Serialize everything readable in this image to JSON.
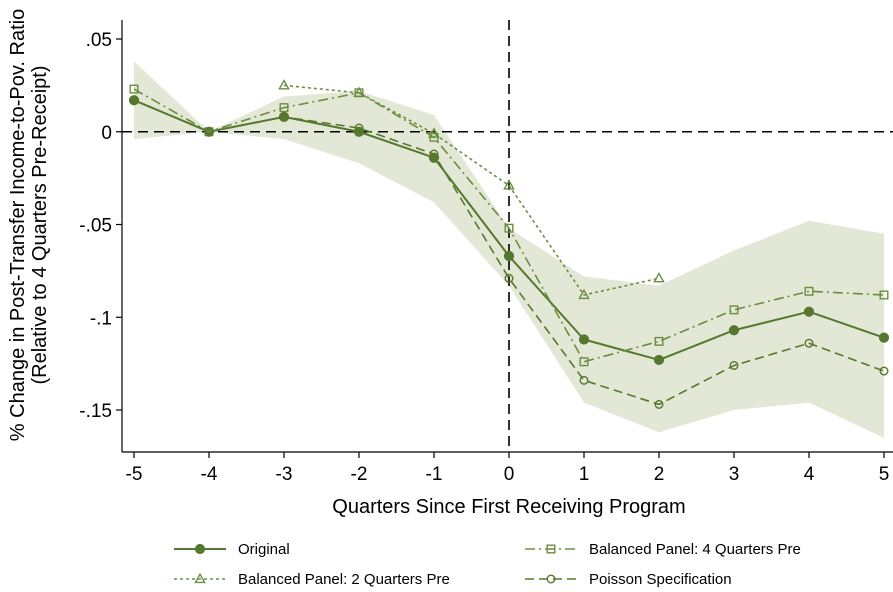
{
  "chart_data": {
    "type": "line",
    "xlabel": "Quarters Since First Receiving Program",
    "ylabel_line1": "% Change in Post-Transfer Income-to-Pov. Ratio",
    "ylabel_line2": "(Relative to 4 Quarters Pre-Receipt)",
    "xlim": [
      -5,
      5
    ],
    "ylim": [
      -0.162,
      0.05
    ],
    "x_ticks": [
      {
        "value": -5,
        "label": "-5"
      },
      {
        "value": -4,
        "label": "-4"
      },
      {
        "value": -3,
        "label": "-3"
      },
      {
        "value": -2,
        "label": "-2"
      },
      {
        "value": -1,
        "label": "-1"
      },
      {
        "value": 0,
        "label": "0"
      },
      {
        "value": 1,
        "label": "1"
      },
      {
        "value": 2,
        "label": "2"
      },
      {
        "value": 3,
        "label": "3"
      },
      {
        "value": 4,
        "label": "4"
      },
      {
        "value": 5,
        "label": "5"
      }
    ],
    "y_ticks": [
      {
        "value": 0.05,
        "label": ".05"
      },
      {
        "value": 0,
        "label": "0"
      },
      {
        "value": -0.05,
        "label": "-.05"
      },
      {
        "value": -0.1,
        "label": "-.1"
      },
      {
        "value": -0.15,
        "label": "-.15"
      }
    ],
    "reference_lines": {
      "x": 0,
      "y": 0
    },
    "grid": false,
    "legend_position": "bottom",
    "confidence_band": {
      "x": [
        -5,
        -4,
        -3,
        -2,
        -1,
        0,
        1,
        2,
        3,
        4,
        5
      ],
      "upper": [
        0.038,
        0.0,
        0.019,
        0.022,
        0.009,
        -0.052,
        -0.078,
        -0.083,
        -0.064,
        -0.048,
        -0.055
      ],
      "lower": [
        -0.004,
        0.0,
        -0.004,
        -0.017,
        -0.038,
        -0.083,
        -0.146,
        -0.162,
        -0.15,
        -0.146,
        -0.165
      ],
      "color": "#e2e8d5"
    },
    "series": [
      {
        "name": "Original",
        "x": [
          -5,
          -4,
          -3,
          -2,
          -1,
          0,
          1,
          2,
          3,
          4,
          5
        ],
        "y": [
          0.017,
          0.0,
          0.008,
          0.0,
          -0.014,
          -0.067,
          -0.112,
          -0.123,
          -0.107,
          -0.097,
          -0.111
        ],
        "color": "#56782e",
        "dash": "",
        "marker": "circle-filled",
        "width": 2
      },
      {
        "name": "Balanced Panel: 2 Quarters Pre",
        "x": [
          -3,
          -2,
          -1,
          0,
          1,
          2
        ],
        "y": [
          0.025,
          0.021,
          -0.001,
          -0.029,
          -0.088,
          -0.079
        ],
        "color": "#6c8d40",
        "dash": "3 3",
        "marker": "triangle",
        "width": 1.6
      },
      {
        "name": "Balanced Panel: 4 Quarters Pre",
        "x": [
          -5,
          -4,
          -3,
          -2,
          -1,
          0,
          1,
          2,
          3,
          4,
          5
        ],
        "y": [
          0.023,
          0.0,
          0.013,
          0.021,
          -0.003,
          -0.052,
          -0.124,
          -0.113,
          -0.096,
          -0.086,
          -0.088
        ],
        "color": "#6c8d40",
        "dash": "10 4 2 4",
        "marker": "square",
        "width": 1.6
      },
      {
        "name": "Poisson Specification",
        "x": [
          -5,
          -4,
          -3,
          -2,
          -1,
          0,
          1,
          2,
          3,
          4,
          5
        ],
        "y": [
          0.017,
          0.0,
          0.008,
          0.002,
          -0.012,
          -0.079,
          -0.134,
          -0.147,
          -0.126,
          -0.114,
          -0.129
        ],
        "color": "#56782e",
        "dash": "9 5",
        "marker": "circle",
        "width": 1.6
      }
    ]
  }
}
